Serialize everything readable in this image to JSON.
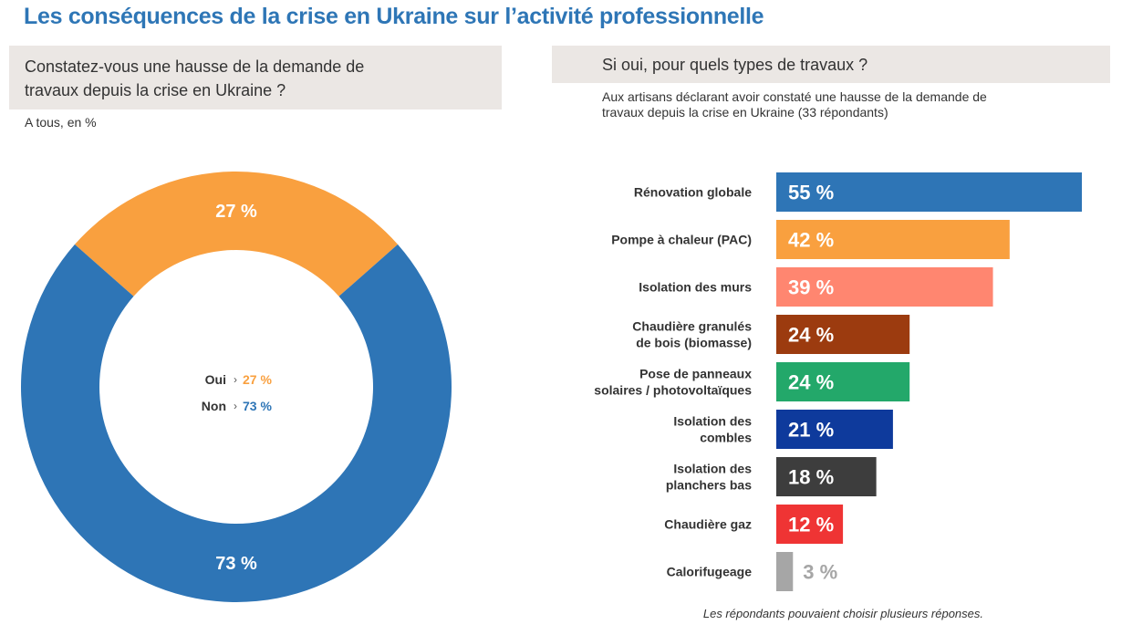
{
  "title": "Les conséquences de la crise en Ukraine sur l’activité professionnelle",
  "left": {
    "question": [
      "Constatez-vous une hausse de la demande de",
      "travaux depuis la crise en Ukraine ?"
    ],
    "basis": "A tous, en %"
  },
  "right": {
    "question": "Si oui, pour quels types de travaux ?",
    "basis": [
      "Aux artisans déclarant avoir constaté une hausse de la demande de",
      "travaux depuis la crise en Ukraine (33 répondants)"
    ],
    "footnote": "Les répondants pouvaient choisir plusieurs réponses."
  },
  "legend": [
    {
      "label": "Oui",
      "value": "27 %",
      "color": "#f9a03f"
    },
    {
      "label": "Non",
      "value": "73 %",
      "color": "#2e75b6"
    }
  ],
  "chart_data": [
    {
      "type": "pie",
      "donut": true,
      "slices": [
        {
          "name": "Oui",
          "value": 27,
          "label": "27 %",
          "color": "#f9a03f"
        },
        {
          "name": "Non",
          "value": 73,
          "label": "73 %",
          "color": "#2e75b6"
        }
      ]
    },
    {
      "type": "bar",
      "orientation": "horizontal",
      "categories": [
        [
          "Rénovation globale"
        ],
        [
          "Pompe à chaleur (PAC)"
        ],
        [
          "Isolation des murs"
        ],
        [
          "Chaudière granulés",
          "de bois (biomasse)"
        ],
        [
          "Pose de panneaux",
          "solaires / photovoltaïques"
        ],
        [
          "Isolation des",
          "combles"
        ],
        [
          "Isolation des",
          "planchers bas"
        ],
        [
          "Chaudière gaz"
        ],
        [
          "Calorifugeage"
        ]
      ],
      "values": [
        55,
        42,
        39,
        24,
        24,
        21,
        18,
        12,
        3
      ],
      "value_labels": [
        "55 %",
        "42 %",
        "39 %",
        "24 %",
        "24 %",
        "21 %",
        "18 %",
        "12 %",
        "3 %"
      ],
      "colors": [
        "#2e75b6",
        "#f9a03f",
        "#ff8670",
        "#9c3b0f",
        "#23a86a",
        "#0e3a9c",
        "#3d3d3d",
        "#ef3434",
        "#a6a6a6"
      ],
      "xlim": [
        0,
        55
      ]
    }
  ]
}
